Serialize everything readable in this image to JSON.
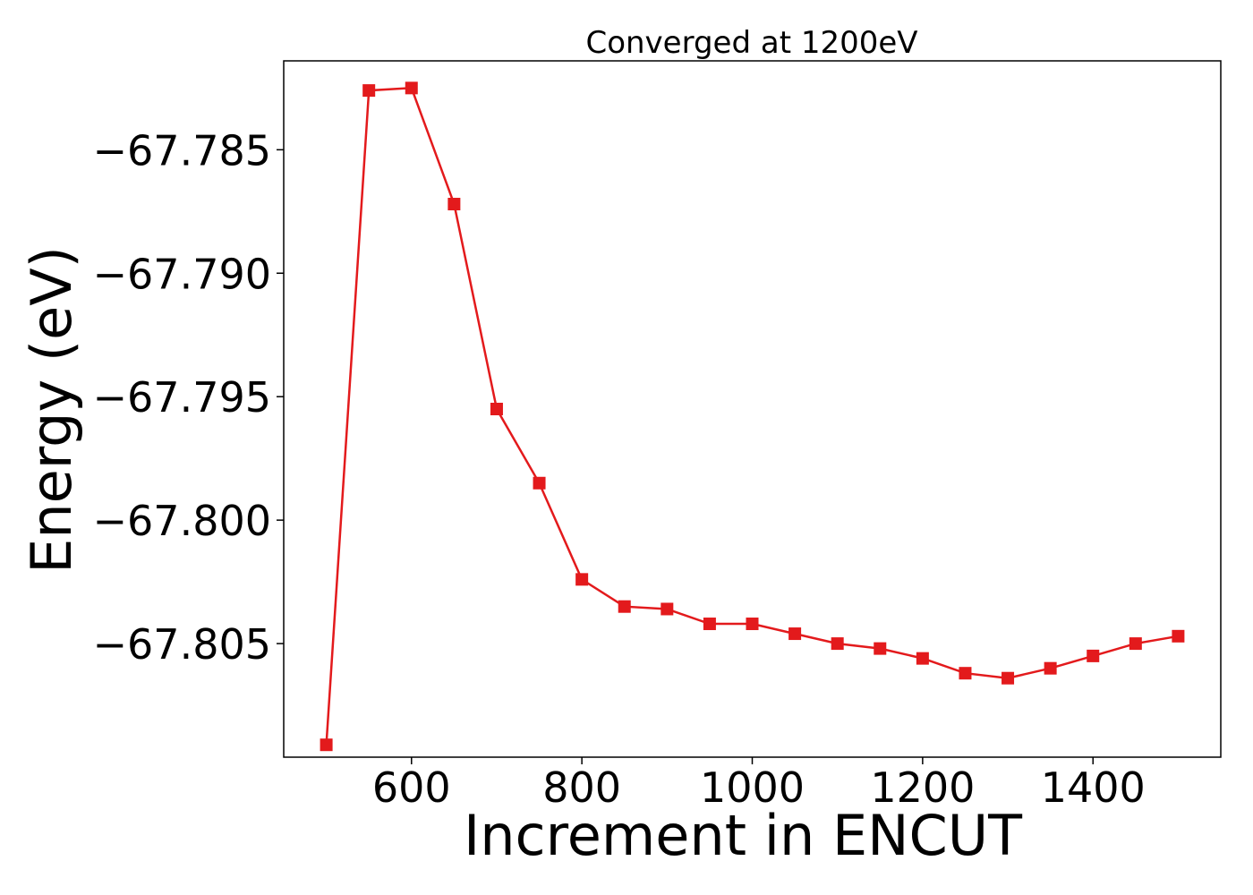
{
  "chart_data": {
    "type": "line",
    "title": "Converged at 1200eV",
    "xlabel": "Increment in ENCUT",
    "ylabel": "Energy (eV)",
    "xlim": [
      450,
      1550
    ],
    "ylim": [
      -67.8096,
      -67.7814
    ],
    "x_ticks": [
      600,
      800,
      1000,
      1200,
      1400
    ],
    "x_tick_labels": [
      "600",
      "800",
      "1000",
      "1200",
      "1400"
    ],
    "y_ticks": [
      -67.785,
      -67.79,
      -67.795,
      -67.8,
      -67.805
    ],
    "y_tick_labels": [
      "−67.785",
      "−67.790",
      "−67.795",
      "−67.800",
      "−67.805"
    ],
    "grid": false,
    "series": [
      {
        "color": "#e31a1c",
        "marker": "square",
        "x": [
          500,
          550,
          600,
          650,
          700,
          750,
          800,
          850,
          900,
          950,
          1000,
          1050,
          1100,
          1150,
          1200,
          1250,
          1300,
          1350,
          1400,
          1450,
          1500
        ],
        "y": [
          -67.8091,
          -67.7826,
          -67.7825,
          -67.7872,
          -67.7955,
          -67.7985,
          -67.8024,
          -67.8035,
          -67.8036,
          -67.8042,
          -67.8042,
          -67.8046,
          -67.805,
          -67.8052,
          -67.8056,
          -67.8062,
          -67.8064,
          -67.806,
          -67.8055,
          -67.805,
          -67.8047
        ]
      }
    ]
  }
}
